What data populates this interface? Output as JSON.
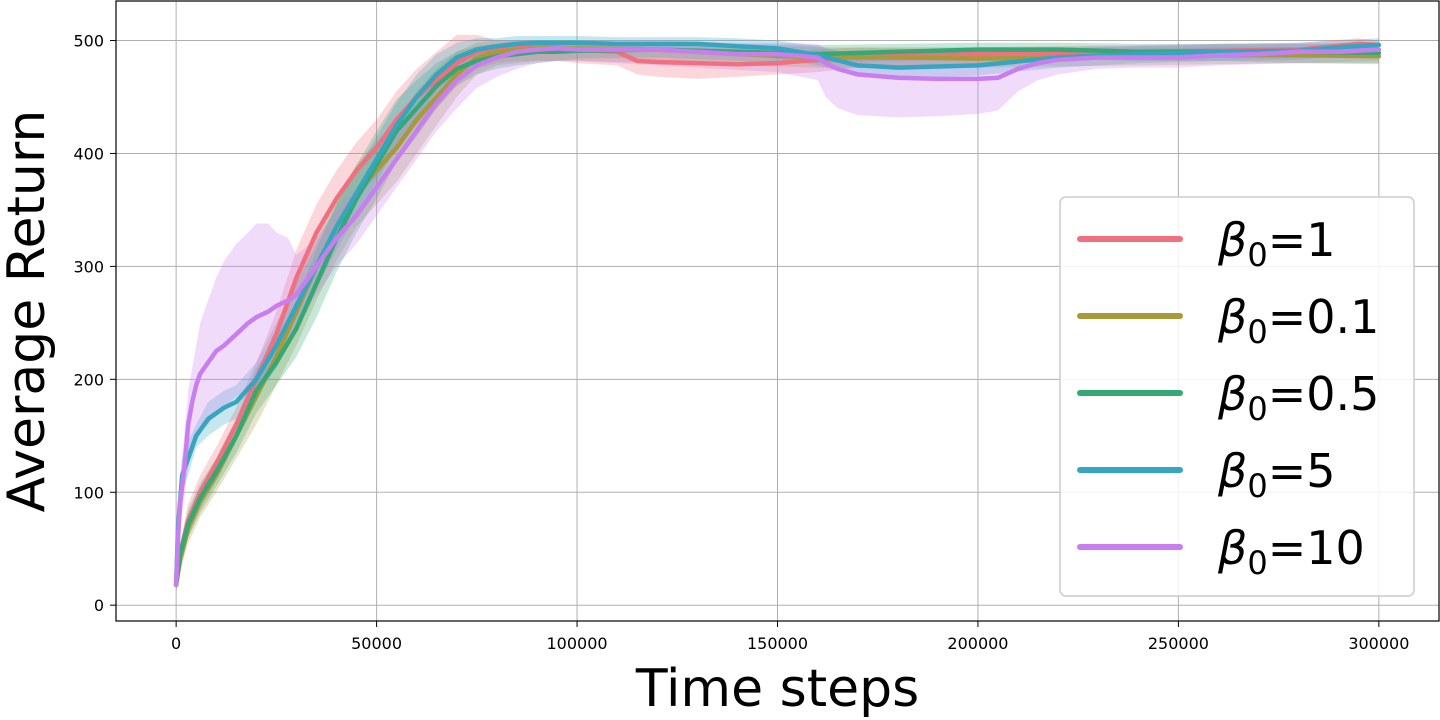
{
  "chart_data": {
    "type": "line",
    "title": "",
    "xlabel": "Time steps",
    "ylabel": "Average Return",
    "xlim": [
      -15000,
      315000
    ],
    "ylim": [
      -14,
      535
    ],
    "grid": true,
    "legend_position": "right",
    "xticks": [
      0,
      50000,
      100000,
      150000,
      200000,
      250000,
      300000
    ],
    "xtick_labels": [
      "0",
      "50000",
      "100000",
      "150000",
      "200000",
      "250000",
      "300000"
    ],
    "yticks": [
      0,
      100,
      200,
      300,
      400,
      500
    ],
    "ytick_labels": [
      "0",
      "100",
      "200",
      "300",
      "400",
      "500"
    ],
    "series": [
      {
        "name": "β0=1",
        "symbol": "β",
        "subscript": "0",
        "value": "=1",
        "color": "#f0707f",
        "x": [
          0,
          1000,
          3000,
          6000,
          10000,
          15000,
          20000,
          25000,
          30000,
          35000,
          40000,
          45000,
          50000,
          55000,
          60000,
          65000,
          70000,
          75000,
          80000,
          85000,
          90000,
          95000,
          100000,
          110000,
          115000,
          120000,
          130000,
          140000,
          150000,
          160000,
          170000,
          180000,
          200000,
          220000,
          240000,
          260000,
          280000,
          295000,
          300000
        ],
        "y": [
          18,
          45,
          75,
          100,
          125,
          160,
          200,
          240,
          290,
          330,
          360,
          385,
          405,
          430,
          450,
          465,
          480,
          490,
          493,
          495,
          495,
          494,
          492,
          490,
          482,
          481,
          480,
          479,
          480,
          483,
          486,
          487,
          488,
          489,
          490,
          491,
          492,
          497,
          496
        ],
        "lower": [
          12,
          35,
          60,
          85,
          110,
          145,
          185,
          220,
          265,
          305,
          335,
          360,
          380,
          405,
          425,
          440,
          460,
          475,
          480,
          482,
          482,
          482,
          480,
          478,
          470,
          468,
          466,
          468,
          470,
          472,
          476,
          478,
          480,
          482,
          484,
          486,
          488,
          490,
          490
        ],
        "upper": [
          25,
          55,
          90,
          115,
          140,
          175,
          215,
          260,
          315,
          355,
          385,
          410,
          430,
          455,
          475,
          490,
          505,
          505,
          500,
          500,
          500,
          500,
          498,
          498,
          495,
          494,
          492,
          490,
          490,
          492,
          494,
          494,
          494,
          495,
          496,
          497,
          498,
          502,
          500
        ]
      },
      {
        "name": "β0=0.1",
        "symbol": "β",
        "subscript": "0",
        "value": "=0.1",
        "color": "#a89a3b",
        "x": [
          0,
          1000,
          3000,
          6000,
          10000,
          15000,
          20000,
          25000,
          30000,
          35000,
          40000,
          45000,
          50000,
          55000,
          60000,
          65000,
          70000,
          75000,
          80000,
          85000,
          90000,
          100000,
          120000,
          140000,
          160000,
          180000,
          200000,
          220000,
          240000,
          260000,
          280000,
          300000
        ],
        "y": [
          18,
          40,
          68,
          92,
          115,
          150,
          185,
          220,
          260,
          300,
          335,
          365,
          385,
          405,
          430,
          450,
          470,
          485,
          490,
          492,
          493,
          493,
          492,
          488,
          485,
          485,
          484,
          485,
          486,
          487,
          487,
          486
        ],
        "lower": [
          12,
          30,
          55,
          78,
          100,
          130,
          160,
          195,
          230,
          270,
          305,
          335,
          355,
          375,
          400,
          425,
          450,
          470,
          478,
          480,
          482,
          482,
          480,
          478,
          476,
          476,
          476,
          477,
          478,
          479,
          480,
          479
        ],
        "upper": [
          25,
          50,
          80,
          105,
          130,
          165,
          205,
          245,
          285,
          325,
          360,
          390,
          410,
          430,
          455,
          475,
          490,
          498,
          500,
          500,
          500,
          500,
          498,
          496,
          494,
          493,
          492,
          493,
          493,
          494,
          494,
          493
        ]
      },
      {
        "name": "β0=0.5",
        "symbol": "β",
        "subscript": "0",
        "value": "=0.5",
        "color": "#35a876",
        "x": [
          0,
          1000,
          3000,
          6000,
          10000,
          15000,
          20000,
          25000,
          30000,
          35000,
          40000,
          45000,
          50000,
          55000,
          60000,
          65000,
          70000,
          75000,
          80000,
          85000,
          90000,
          95000,
          100000,
          120000,
          140000,
          160000,
          180000,
          200000,
          220000,
          240000,
          260000,
          280000,
          300000
        ],
        "y": [
          18,
          45,
          72,
          95,
          118,
          150,
          190,
          215,
          245,
          285,
          325,
          360,
          390,
          420,
          440,
          460,
          475,
          482,
          486,
          488,
          490,
          490,
          491,
          492,
          490,
          488,
          490,
          492,
          492,
          490,
          490,
          490,
          489
        ],
        "lower": [
          12,
          35,
          60,
          82,
          105,
          135,
          170,
          195,
          220,
          255,
          295,
          330,
          360,
          392,
          415,
          440,
          460,
          470,
          475,
          478,
          480,
          482,
          484,
          485,
          482,
          480,
          482,
          484,
          484,
          482,
          482,
          480,
          480
        ],
        "upper": [
          25,
          55,
          85,
          108,
          130,
          165,
          210,
          235,
          270,
          315,
          355,
          390,
          420,
          448,
          465,
          480,
          490,
          495,
          497,
          498,
          498,
          498,
          498,
          498,
          497,
          496,
          497,
          498,
          498,
          497,
          497,
          497,
          497
        ]
      },
      {
        "name": "β0=5",
        "symbol": "β",
        "subscript": "0",
        "value": "=5",
        "color": "#36a5c0",
        "x": [
          0,
          500,
          1500,
          3000,
          5000,
          8000,
          12000,
          15000,
          20000,
          25000,
          30000,
          35000,
          40000,
          45000,
          50000,
          55000,
          60000,
          65000,
          70000,
          75000,
          80000,
          85000,
          90000,
          95000,
          100000,
          110000,
          120000,
          130000,
          140000,
          150000,
          160000,
          170000,
          180000,
          190000,
          200000,
          220000,
          240000,
          260000,
          280000,
          290000,
          300000
        ],
        "y": [
          18,
          70,
          115,
          130,
          150,
          165,
          175,
          180,
          200,
          230,
          265,
          300,
          335,
          365,
          395,
          425,
          450,
          470,
          485,
          492,
          495,
          497,
          498,
          498,
          498,
          497,
          497,
          497,
          495,
          493,
          487,
          478,
          476,
          477,
          478,
          485,
          488,
          490,
          491,
          494,
          496
        ],
        "lower": [
          12,
          55,
          100,
          115,
          140,
          150,
          160,
          165,
          185,
          210,
          245,
          280,
          315,
          345,
          375,
          405,
          430,
          455,
          472,
          482,
          486,
          488,
          490,
          490,
          490,
          490,
          490,
          490,
          487,
          484,
          478,
          468,
          466,
          468,
          469,
          476,
          480,
          482,
          483,
          486,
          488
        ],
        "upper": [
          25,
          85,
          130,
          145,
          160,
          180,
          190,
          195,
          215,
          250,
          285,
          320,
          355,
          385,
          415,
          445,
          470,
          488,
          498,
          502,
          502,
          504,
          504,
          504,
          504,
          503,
          503,
          503,
          502,
          500,
          495,
          487,
          485,
          486,
          486,
          493,
          495,
          497,
          498,
          500,
          502
        ]
      },
      {
        "name": "β0=10",
        "symbol": "β",
        "subscript": "0",
        "value": "=10",
        "color": "#c97ef0",
        "x": [
          0,
          500,
          1000,
          2000,
          3000,
          4000,
          5000,
          6000,
          8000,
          10000,
          12000,
          15000,
          18000,
          20000,
          23000,
          25000,
          28000,
          30000,
          35000,
          40000,
          45000,
          50000,
          55000,
          60000,
          65000,
          70000,
          75000,
          80000,
          85000,
          90000,
          95000,
          100000,
          110000,
          120000,
          130000,
          140000,
          150000,
          160000,
          162000,
          165000,
          170000,
          180000,
          190000,
          200000,
          205000,
          210000,
          215000,
          220000,
          230000,
          240000,
          250000,
          260000,
          270000,
          280000,
          290000,
          300000
        ],
        "y": [
          18,
          60,
          90,
          120,
          160,
          180,
          195,
          205,
          215,
          225,
          230,
          240,
          250,
          255,
          260,
          265,
          270,
          275,
          300,
          325,
          345,
          370,
          395,
          420,
          445,
          465,
          478,
          485,
          490,
          492,
          493,
          492,
          492,
          492,
          490,
          488,
          488,
          485,
          480,
          475,
          470,
          467,
          466,
          466,
          467,
          475,
          480,
          483,
          485,
          485,
          485,
          487,
          488,
          490,
          490,
          492
        ],
        "lower": [
          12,
          45,
          70,
          95,
          125,
          140,
          150,
          155,
          160,
          170,
          175,
          185,
          190,
          195,
          200,
          215,
          235,
          245,
          275,
          300,
          320,
          345,
          370,
          395,
          420,
          440,
          458,
          468,
          475,
          480,
          482,
          482,
          480,
          478,
          476,
          474,
          472,
          465,
          450,
          440,
          434,
          432,
          433,
          435,
          438,
          455,
          465,
          470,
          475,
          476,
          476,
          478,
          479,
          480,
          481,
          482
        ],
        "upper": [
          25,
          80,
          115,
          150,
          190,
          210,
          230,
          250,
          270,
          290,
          305,
          320,
          330,
          338,
          338,
          330,
          325,
          310,
          325,
          350,
          370,
          395,
          420,
          445,
          468,
          485,
          495,
          498,
          500,
          500,
          500,
          500,
          500,
          500,
          499,
          498,
          498,
          497,
          493,
          490,
          488,
          487,
          487,
          488,
          490,
          493,
          494,
          494,
          495,
          495,
          495,
          496,
          496,
          497,
          498,
          498
        ]
      }
    ]
  }
}
